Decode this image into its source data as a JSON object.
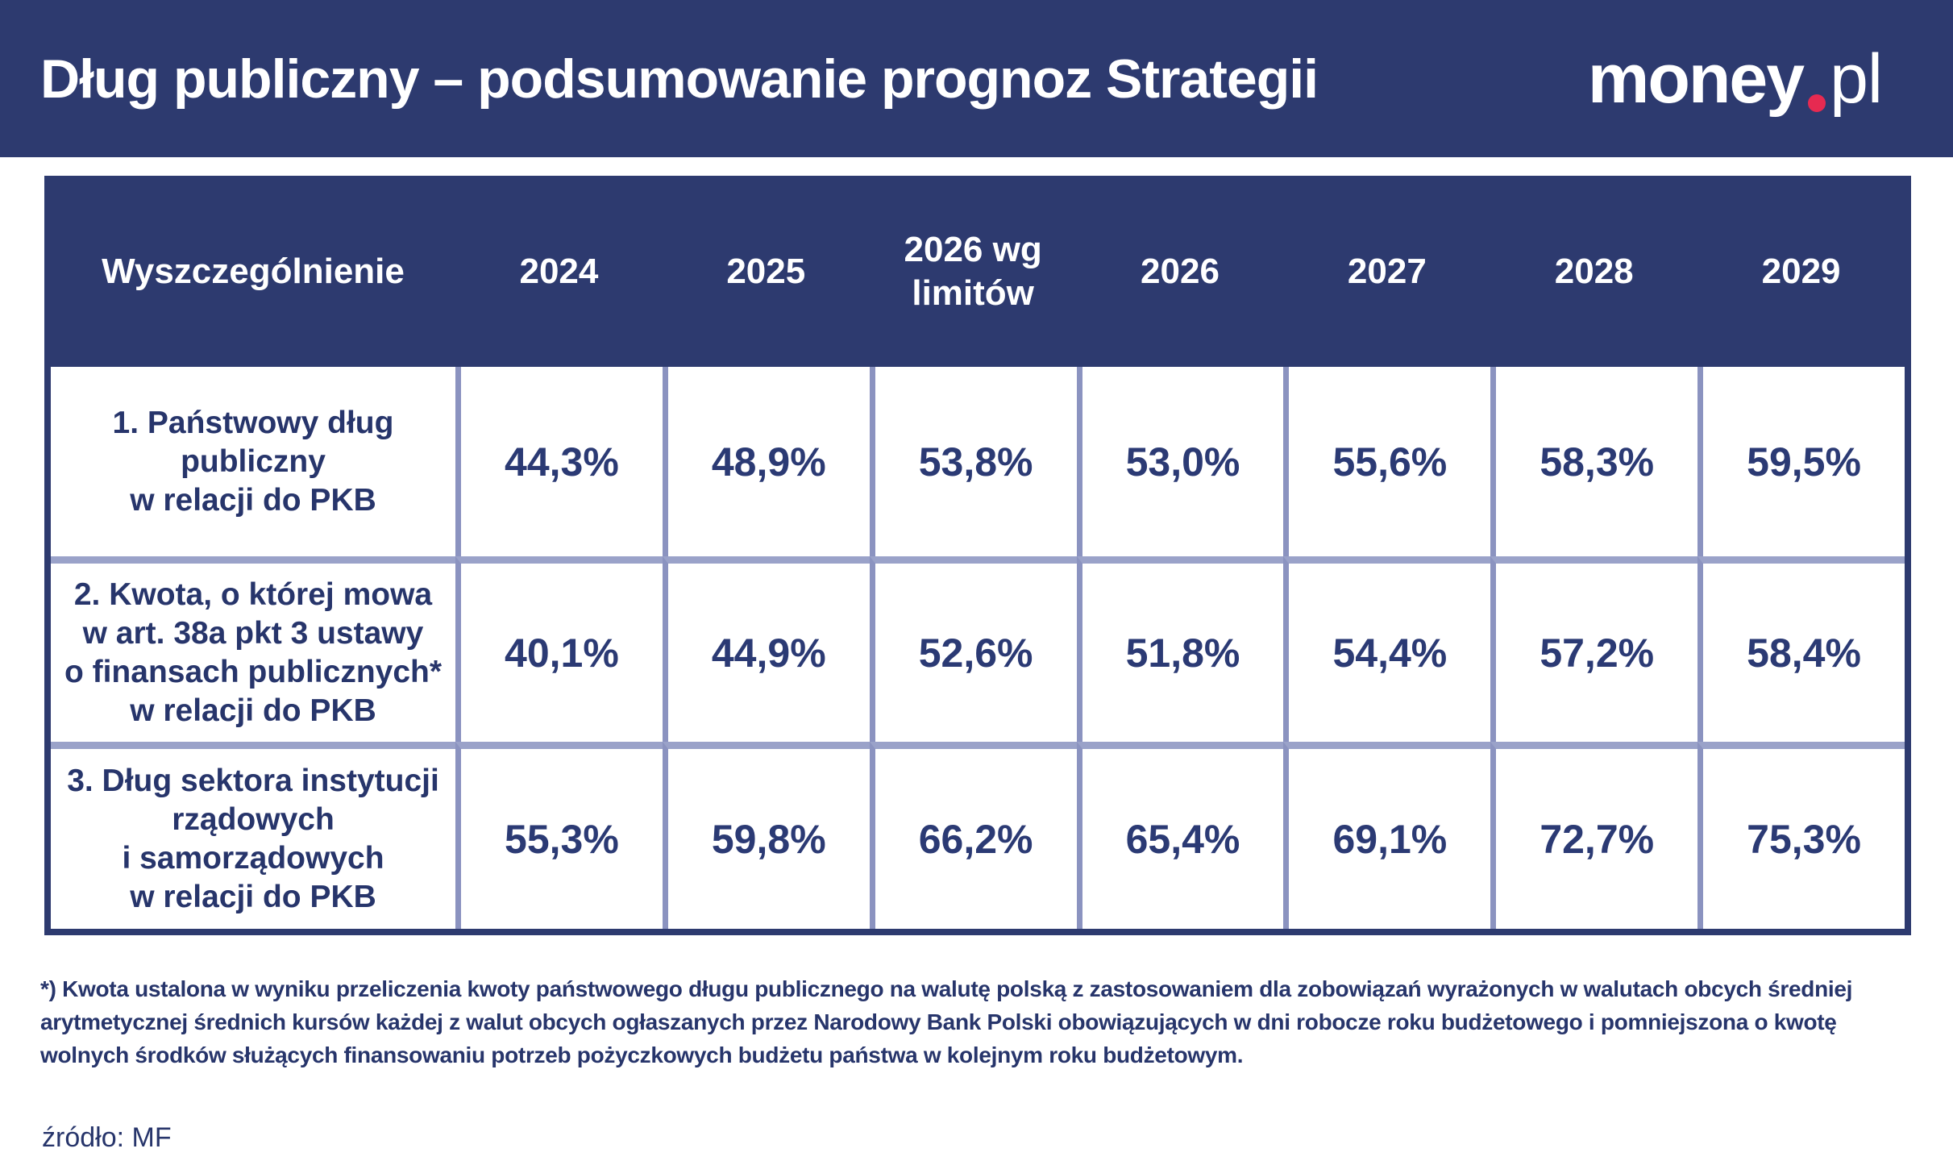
{
  "topbar": {
    "title": "Dług publiczny – podsumowanie prognoz Strategii",
    "logo": {
      "money": "money",
      "pl": "pl"
    }
  },
  "table": {
    "columns": [
      "Wyszczególnienie",
      "2024",
      "2025",
      "2026 wg\nlimitów",
      "2026",
      "2027",
      "2028",
      "2029"
    ],
    "rows": [
      {
        "label": "1. Państwowy dług\npubliczny\nw relacji do PKB",
        "values": [
          "44,3%",
          "48,9%",
          "53,8%",
          "53,0%",
          "55,6%",
          "58,3%",
          "59,5%"
        ]
      },
      {
        "label": "2. Kwota, o której mowa\nw art. 38a pkt 3 ustawy\no finansach publicznych*\nw relacji do PKB",
        "values": [
          "40,1%",
          "44,9%",
          "52,6%",
          "51,8%",
          "54,4%",
          "57,2%",
          "58,4%"
        ]
      },
      {
        "label": "3. Dług sektora instytucji\nrządowych\ni samorządowych\nw relacji do PKB",
        "values": [
          "55,3%",
          "59,8%",
          "66,2%",
          "65,4%",
          "69,1%",
          "72,7%",
          "75,3%"
        ]
      }
    ]
  },
  "footnote": "*) Kwota ustalona w wyniku przeliczenia kwoty państwowego długu publicznego na walutę polską z zastosowaniem dla zobowiązań wyrażonych w walutach obcych średniej\narytmetycznej średnich kursów każdej z walut obcych ogłaszanych przez Narodowy Bank Polski obowiązujących w dni robocze roku budżetowego i pomniejszona o kwotę\nwolnych środków służących finansowaniu potrzeb pożyczkowych budżetu państwa w kolejnym roku budżetowym.",
  "source": "źródło: MF",
  "colors": {
    "navy": "#2d3a6f",
    "cell_text": "#27356b",
    "grid_line": "#8b93c0",
    "logo_dot": "#e62a51",
    "background": "#ffffff"
  },
  "chart_data": {
    "type": "table",
    "title": "Dług publiczny – podsumowanie prognoz Strategii",
    "categories": [
      "2024",
      "2025",
      "2026 wg limitów",
      "2026",
      "2027",
      "2028",
      "2029"
    ],
    "series": [
      {
        "name": "1. Państwowy dług publiczny w relacji do PKB",
        "values": [
          44.3,
          48.9,
          53.8,
          53.0,
          55.6,
          58.3,
          59.5
        ],
        "unit": "%"
      },
      {
        "name": "2. Kwota, o której mowa w art. 38a pkt 3 ustawy o finansach publicznych* w relacji do PKB",
        "values": [
          40.1,
          44.9,
          52.6,
          51.8,
          54.4,
          57.2,
          58.4
        ],
        "unit": "%"
      },
      {
        "name": "3. Dług sektora instytucji rządowych i samorządowych w relacji do PKB",
        "values": [
          55.3,
          59.8,
          66.2,
          65.4,
          69.1,
          72.7,
          75.3
        ],
        "unit": "%"
      }
    ],
    "source": "źródło: MF"
  }
}
